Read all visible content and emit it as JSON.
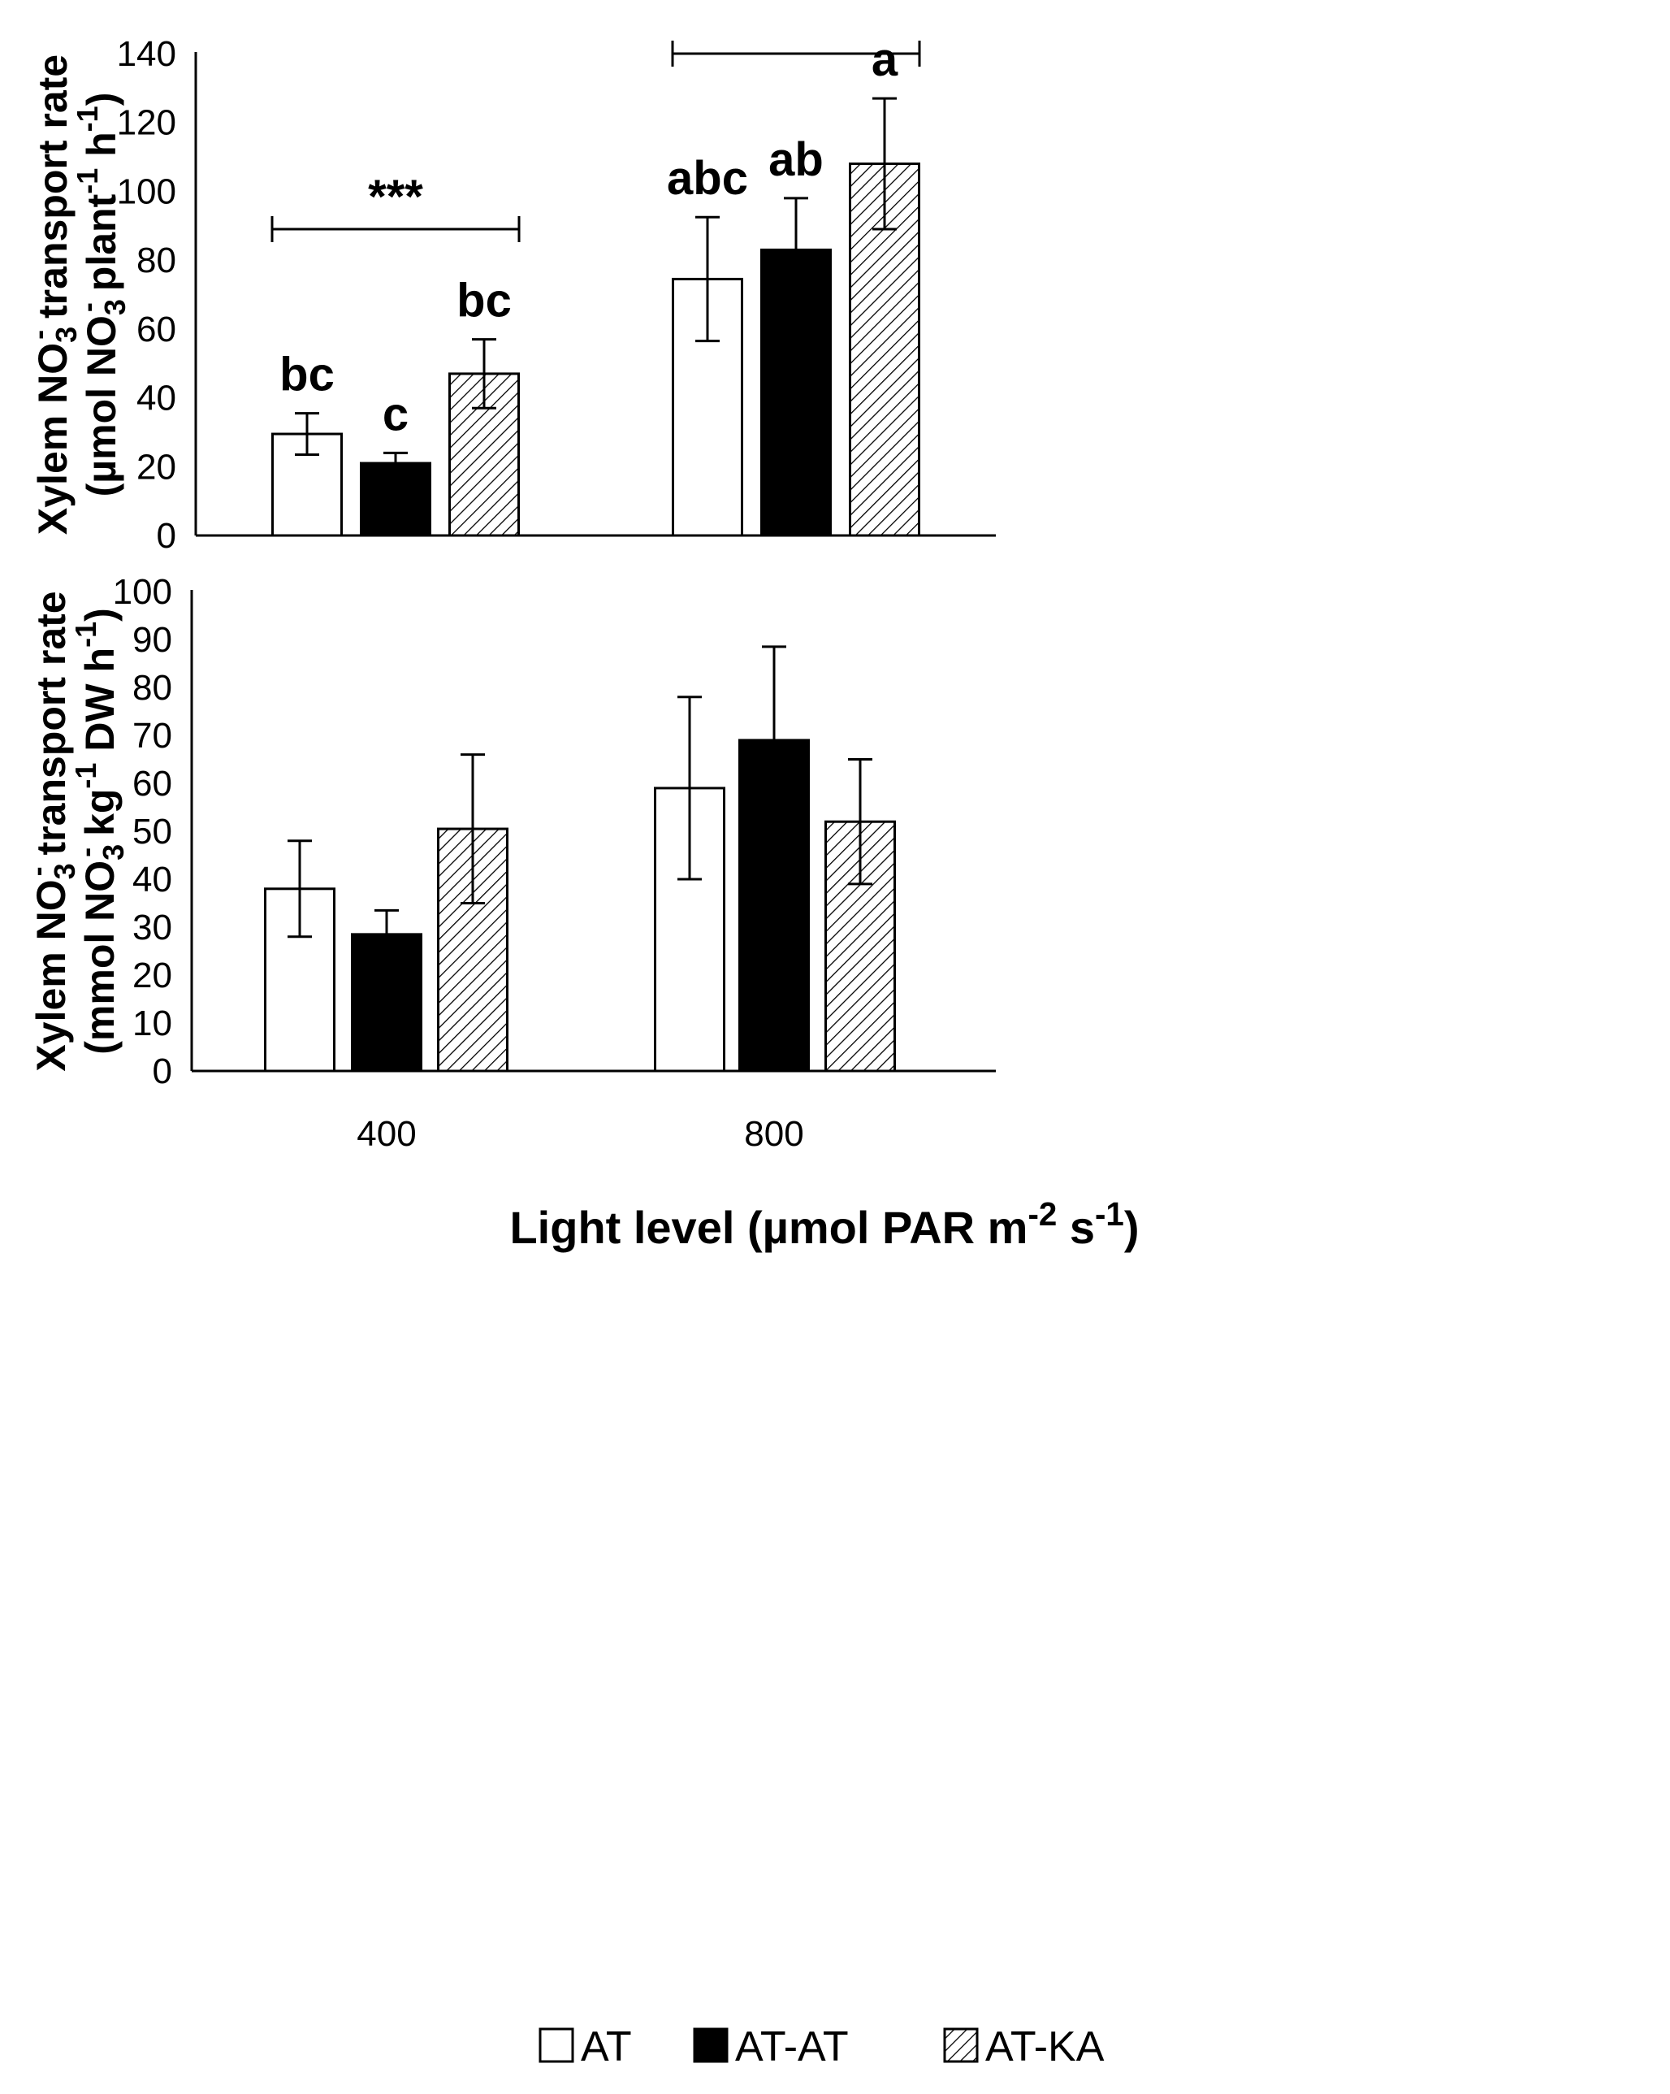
{
  "chart_data": [
    {
      "type": "bar",
      "panel": "top",
      "categories": [
        "400",
        "800"
      ],
      "series": [
        {
          "name": "AT",
          "values": [
            29.5,
            74.5
          ],
          "errors": [
            6,
            18
          ]
        },
        {
          "name": "AT-AT",
          "values": [
            21,
            83
          ],
          "errors": [
            3,
            15
          ]
        },
        {
          "name": "AT-KA",
          "values": [
            47,
            108
          ],
          "errors": [
            10,
            19
          ]
        }
      ],
      "ylabel_line1": [
        "Xylem NO",
        "3",
        "-",
        " transport rate"
      ],
      "ylabel_line2": [
        "(µmol NO",
        "3",
        "-",
        " plant",
        "-1",
        " h",
        "-1",
        ")"
      ],
      "ylim": [
        0,
        140
      ],
      "yticks": [
        0,
        20,
        40,
        60,
        80,
        100,
        120,
        140
      ],
      "letters": [
        [
          "bc",
          "abc"
        ],
        [
          "c",
          "ab"
        ],
        [
          "bc",
          "a"
        ]
      ],
      "significance": [
        {
          "category": "400",
          "label": "***"
        },
        {
          "category": "800",
          "label": ""
        }
      ]
    },
    {
      "type": "bar",
      "panel": "bottom",
      "categories": [
        "400",
        "800"
      ],
      "series": [
        {
          "name": "AT",
          "values": [
            38,
            59
          ],
          "errors": [
            10,
            19
          ]
        },
        {
          "name": "AT-AT",
          "values": [
            28.5,
            69
          ],
          "errors": [
            5,
            19.5
          ]
        },
        {
          "name": "AT-KA",
          "values": [
            50.5,
            52
          ],
          "errors": [
            15.5,
            13
          ]
        }
      ],
      "ylabel_line1": [
        "Xylem NO",
        "3",
        "-",
        " transport rate"
      ],
      "ylabel_line2": [
        "(mmol NO",
        "3",
        "-",
        " kg",
        "-1",
        " DW h",
        "-1",
        ")"
      ],
      "ylim": [
        0,
        100
      ],
      "yticks": [
        0,
        10,
        20,
        30,
        40,
        50,
        60,
        70,
        80,
        90,
        100
      ]
    }
  ],
  "xlabel": [
    "Light level (µmol PAR m",
    "-2",
    " s",
    "-1",
    ")"
  ],
  "legend": [
    "AT",
    "AT-AT",
    "AT-KA"
  ]
}
